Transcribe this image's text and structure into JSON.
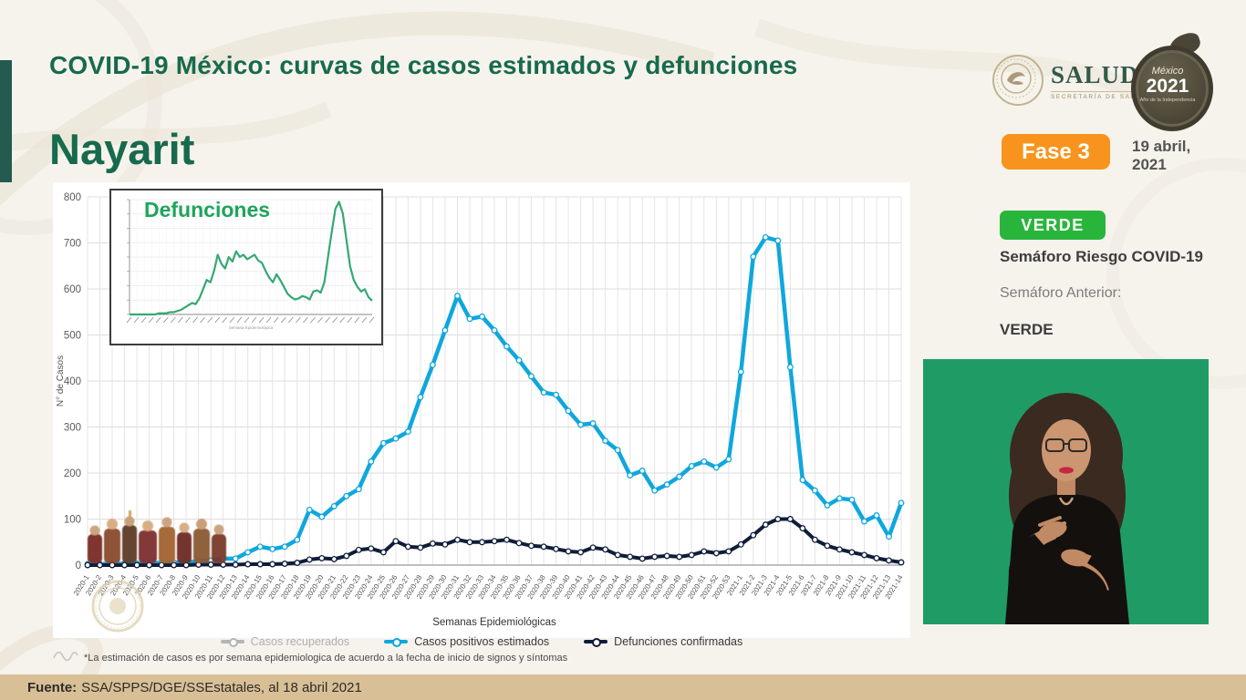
{
  "slide": {
    "title": "COVID-19 México: curvas de casos estimados y defunciones",
    "state": "Nayarit",
    "salud_logo": {
      "name": "SALUD",
      "sub": "SECRETARÍA DE SALUD"
    },
    "mexico2021": {
      "line1": "México",
      "line2": "2021",
      "line3": "Año de la Independencia"
    },
    "phase_badge": "Fase 3",
    "date_line1": "19 abril,",
    "date_line2": "2021",
    "semaforo": {
      "current_badge": "VERDE",
      "risk_label": "Semáforo Riesgo COVID-19",
      "previous_label": "Semáforo Anterior:",
      "previous_value": "VERDE"
    },
    "footnote": "*La estimación de casos es por semana epidemiologica de acuerdo a la fecha de inicio de signos y síntomas",
    "footer": {
      "source_label": "Fuente:",
      "source_text": "SSA/SPPS/DGE/SSEstatales, al 18 abril 2021"
    }
  },
  "colors": {
    "title_green": "#176a4d",
    "accent_bar_green": "#235b4e",
    "badge_green": "#29b53c",
    "badge_orange": "#f8941d",
    "positives_blue": "#0fa7dd",
    "deaths_navy": "#101d3a",
    "recovered_gray": "#b5b5b5",
    "inset_line_green": "#35a873",
    "footer_tan": "#d9bf95",
    "chroma_green": "#1f9c66"
  },
  "chart_data": [
    {
      "type": "line",
      "title": "",
      "xlabel": "Semanas Epidemiológicas",
      "ylabel": "N° de Casos",
      "ylim": [
        0,
        800
      ],
      "yticks": [
        0,
        100,
        200,
        300,
        400,
        500,
        600,
        700,
        800
      ],
      "grid": true,
      "legend_position": "bottom",
      "categories": [
        "2020-1",
        "2020-2",
        "2020-3",
        "2020-4",
        "2020-5",
        "2020-6",
        "2020-7",
        "2020-8",
        "2020-9",
        "2020-10",
        "2020-11",
        "2020-12",
        "2020-13",
        "2020-14",
        "2020-15",
        "2020-16",
        "2020-17",
        "2020-18",
        "2020-19",
        "2020-20",
        "2020-21",
        "2020-22",
        "2020-23",
        "2020-24",
        "2020-25",
        "2020-26",
        "2020-27",
        "2020-28",
        "2020-29",
        "2020-30",
        "2020-31",
        "2020-32",
        "2020-33",
        "2020-34",
        "2020-35",
        "2020-36",
        "2020-37",
        "2020-38",
        "2020-39",
        "2020-40",
        "2020-41",
        "2020-42",
        "2020-43",
        "2020-44",
        "2020-45",
        "2020-46",
        "2020-47",
        "2020-48",
        "2020-49",
        "2020-50",
        "2020-51",
        "2020-52",
        "2020-53",
        "2021-1",
        "2021-2",
        "2021-3",
        "2021-4",
        "2021-5",
        "2021-6",
        "2021-7",
        "2021-8",
        "2021-9",
        "2021-10",
        "2021-11",
        "2021-12",
        "2021-13",
        "2021-14"
      ],
      "series": [
        {
          "name": "Casos recuperados",
          "color": "#b5b5b5",
          "muted": true,
          "plotted": false,
          "values": []
        },
        {
          "name": "Casos positivos estimados",
          "color": "#0fa7dd",
          "width": 4.5,
          "values": [
            2,
            2,
            3,
            3,
            3,
            4,
            5,
            5,
            6,
            8,
            10,
            14,
            14,
            28,
            40,
            35,
            40,
            55,
            120,
            105,
            128,
            150,
            165,
            225,
            265,
            275,
            290,
            365,
            435,
            510,
            585,
            535,
            540,
            510,
            475,
            445,
            410,
            375,
            370,
            335,
            305,
            308,
            270,
            250,
            195,
            205,
            162,
            175,
            192,
            215,
            225,
            212,
            230,
            420,
            670,
            712,
            705,
            430,
            185,
            162,
            130,
            145,
            142,
            95,
            108,
            62,
            135
          ]
        },
        {
          "name": "Defunciones confirmadas",
          "color": "#101d3a",
          "width": 4,
          "values": [
            0,
            0,
            0,
            0,
            0,
            0,
            0,
            0,
            0,
            1,
            1,
            1,
            1,
            2,
            2,
            2,
            3,
            5,
            12,
            15,
            13,
            20,
            33,
            36,
            28,
            52,
            40,
            38,
            47,
            45,
            55,
            50,
            50,
            52,
            55,
            48,
            42,
            40,
            35,
            30,
            28,
            38,
            34,
            22,
            18,
            14,
            18,
            20,
            18,
            22,
            30,
            26,
            30,
            45,
            65,
            88,
            100,
            100,
            80,
            55,
            42,
            34,
            28,
            22,
            15,
            10,
            6
          ]
        }
      ]
    },
    {
      "type": "line",
      "title": "Defunciones",
      "xlabel": "Semana Epidemiológica",
      "ylim": [
        0,
        100
      ],
      "grid": true,
      "series": [
        {
          "name": "Defunciones",
          "color": "#35a873",
          "values": [
            0,
            0,
            0,
            0,
            0,
            0,
            0,
            0,
            1,
            1,
            1,
            2,
            2,
            3,
            4,
            6,
            8,
            10,
            9,
            14,
            22,
            30,
            28,
            38,
            52,
            44,
            40,
            50,
            46,
            55,
            50,
            52,
            48,
            50,
            52,
            47,
            45,
            38,
            32,
            28,
            35,
            30,
            24,
            18,
            15,
            13,
            14,
            16,
            15,
            13,
            20,
            21,
            19,
            28,
            50,
            72,
            92,
            98,
            88,
            65,
            42,
            30,
            24,
            20,
            22,
            15,
            12
          ]
        }
      ]
    }
  ]
}
